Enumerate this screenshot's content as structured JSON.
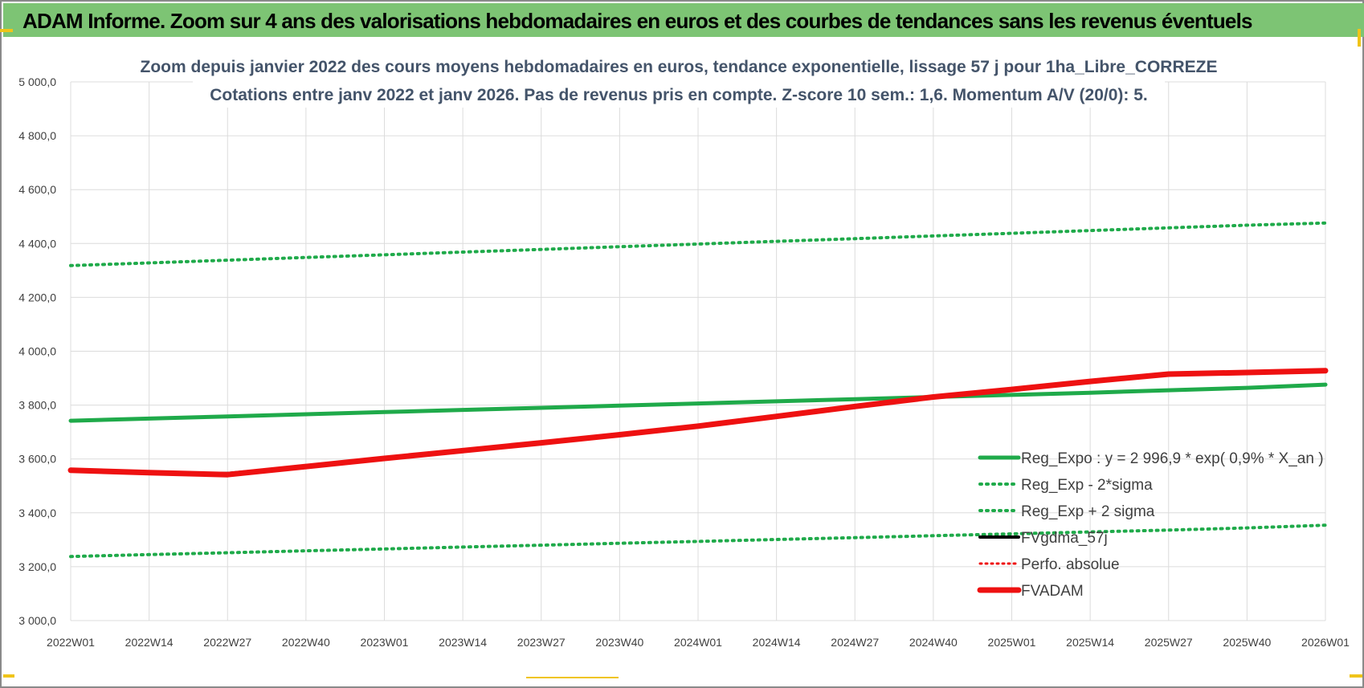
{
  "banner": {
    "title": "ADAM Informe. Zoom sur 4 ans des valorisations hebdomadaires en euros et des courbes de tendances sans les revenus éventuels"
  },
  "colors": {
    "banner_bg": "#7dc474",
    "green": "#1faa4a",
    "red": "#ee1111",
    "black": "#000000",
    "grid": "#dcdcdc",
    "title": "#44546a"
  },
  "chart_data": {
    "type": "line",
    "title": [
      "Zoom depuis janvier 2022 des cours moyens hebdomadaires en euros, tendance exponentielle, lissage 57 j pour 1ha_Libre_CORREZE",
      "Cotations entre janv 2022 et janv 2026. Pas de revenus pris en compte. Z-score 10 sem.: 1,6. Momentum A/V (20/0): 5."
    ],
    "xlabel": "",
    "ylabel": "",
    "ylim": [
      3000,
      5000
    ],
    "yticks": [
      "3 000,0",
      "3 200,0",
      "3 400,0",
      "3 600,0",
      "3 800,0",
      "4 000,0",
      "4 200,0",
      "4 400,0",
      "4 600,0",
      "4 800,0",
      "5 000,0"
    ],
    "ytick_values": [
      3000,
      3200,
      3400,
      3600,
      3800,
      4000,
      4200,
      4400,
      4600,
      4800,
      5000
    ],
    "categories": [
      "2022W01",
      "2022W14",
      "2022W27",
      "2022W40",
      "2023W01",
      "2023W14",
      "2023W27",
      "2023W40",
      "2024W01",
      "2024W14",
      "2024W27",
      "2024W40",
      "2025W01",
      "2025W14",
      "2025W27",
      "2025W40",
      "2026W01"
    ],
    "grid": true,
    "legend_position": "bottom-right",
    "series": [
      {
        "name": "Reg_Expo : y = 2 996,9 * exp( 0,9% *  X_an )",
        "style": "solid-green",
        "values": [
          3742,
          3750,
          3758,
          3766,
          3774,
          3782,
          3790,
          3798,
          3806,
          3814,
          3822,
          3830,
          3838,
          3846,
          3855,
          3864,
          3876
        ]
      },
      {
        "name": "Reg_Exp - 2*sigma",
        "style": "dotted-green",
        "values": [
          3238,
          3245,
          3252,
          3259,
          3266,
          3273,
          3280,
          3287,
          3294,
          3301,
          3308,
          3315,
          3322,
          3329,
          3336,
          3344,
          3354
        ]
      },
      {
        "name": "Reg_Exp + 2 sigma",
        "style": "dotted-green",
        "values": [
          4318,
          4328,
          4338,
          4348,
          4358,
          4368,
          4378,
          4388,
          4398,
          4408,
          4418,
          4428,
          4438,
          4448,
          4458,
          4468,
          4476
        ]
      },
      {
        "name": "FVgdma_57j",
        "style": "solid-black",
        "values": [
          3558,
          3549,
          3546,
          3573,
          3603,
          3632,
          3661,
          3690,
          3722,
          3758,
          3795,
          3830,
          3858,
          3888,
          3915,
          3922,
          3928
        ]
      },
      {
        "name": "Perfo. absolue",
        "style": "dotted-red",
        "values": [
          3558,
          3549,
          3544,
          3573,
          3603,
          3632,
          3661,
          3690,
          3722,
          3758,
          3795,
          3830,
          3858,
          3888,
          3915,
          3922,
          3928
        ]
      },
      {
        "name": "FVADAM",
        "style": "solid-red-thick",
        "values": [
          3558,
          3549,
          3542,
          3572,
          3602,
          3631,
          3660,
          3690,
          3722,
          3758,
          3795,
          3830,
          3858,
          3888,
          3915,
          3921,
          3928
        ]
      }
    ]
  }
}
